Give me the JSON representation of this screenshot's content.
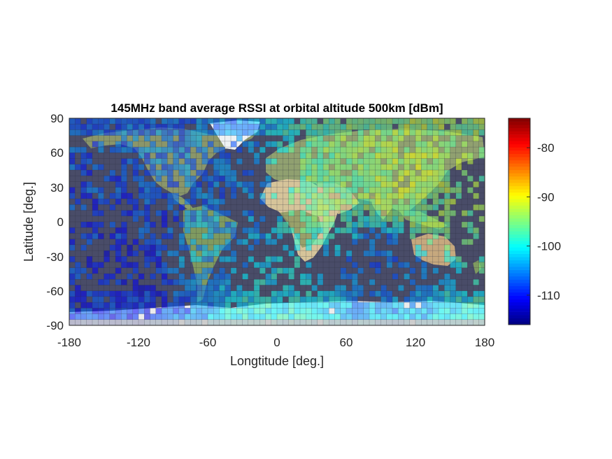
{
  "chart_data": {
    "type": "heatmap",
    "title": "145MHz band average RSSI at orbital altitude 500km [dBm]",
    "xlabel": "Longtitude [deg.]",
    "ylabel": "Latitude [deg.]",
    "xlim": [
      -180,
      180
    ],
    "ylim": [
      -90,
      90
    ],
    "xticks": [
      "-180",
      "-120",
      "-60",
      "0",
      "60",
      "120",
      "180"
    ],
    "yticks": [
      "90",
      "60",
      "30",
      "0",
      "-30",
      "-60",
      "-90"
    ],
    "colorbar": {
      "clim": [
        -116,
        -74
      ],
      "ticks": [
        "-80",
        "-90",
        "-100",
        "-110"
      ],
      "tick_values": [
        -80,
        -90,
        -100,
        -110
      ],
      "colormap": "jet"
    },
    "background_map": "Earth satellite imagery",
    "grid_step_deg": 5,
    "regional_average_rssi": [
      {
        "lon": -100,
        "lat": 0,
        "value": -108
      },
      {
        "lon": -75,
        "lat": -20,
        "value": -104
      },
      {
        "lon": -60,
        "lat": 40,
        "value": -106
      },
      {
        "lon": 60,
        "lat": 30,
        "value": -96
      },
      {
        "lon": 90,
        "lat": 40,
        "value": -94
      },
      {
        "lon": 110,
        "lat": 35,
        "value": -92
      },
      {
        "lon": 120,
        "lat": 15,
        "value": -95
      },
      {
        "lon": 90,
        "lat": -30,
        "value": -106
      },
      {
        "lon": -120,
        "lat": -40,
        "value": -110
      },
      {
        "lon": 0,
        "lat": -85,
        "value": -100
      }
    ],
    "colors": {
      "ocean": "#494c68",
      "land": "#9ba36a",
      "desert": "#d8c8a0",
      "ice": "#f2f2f2"
    }
  }
}
